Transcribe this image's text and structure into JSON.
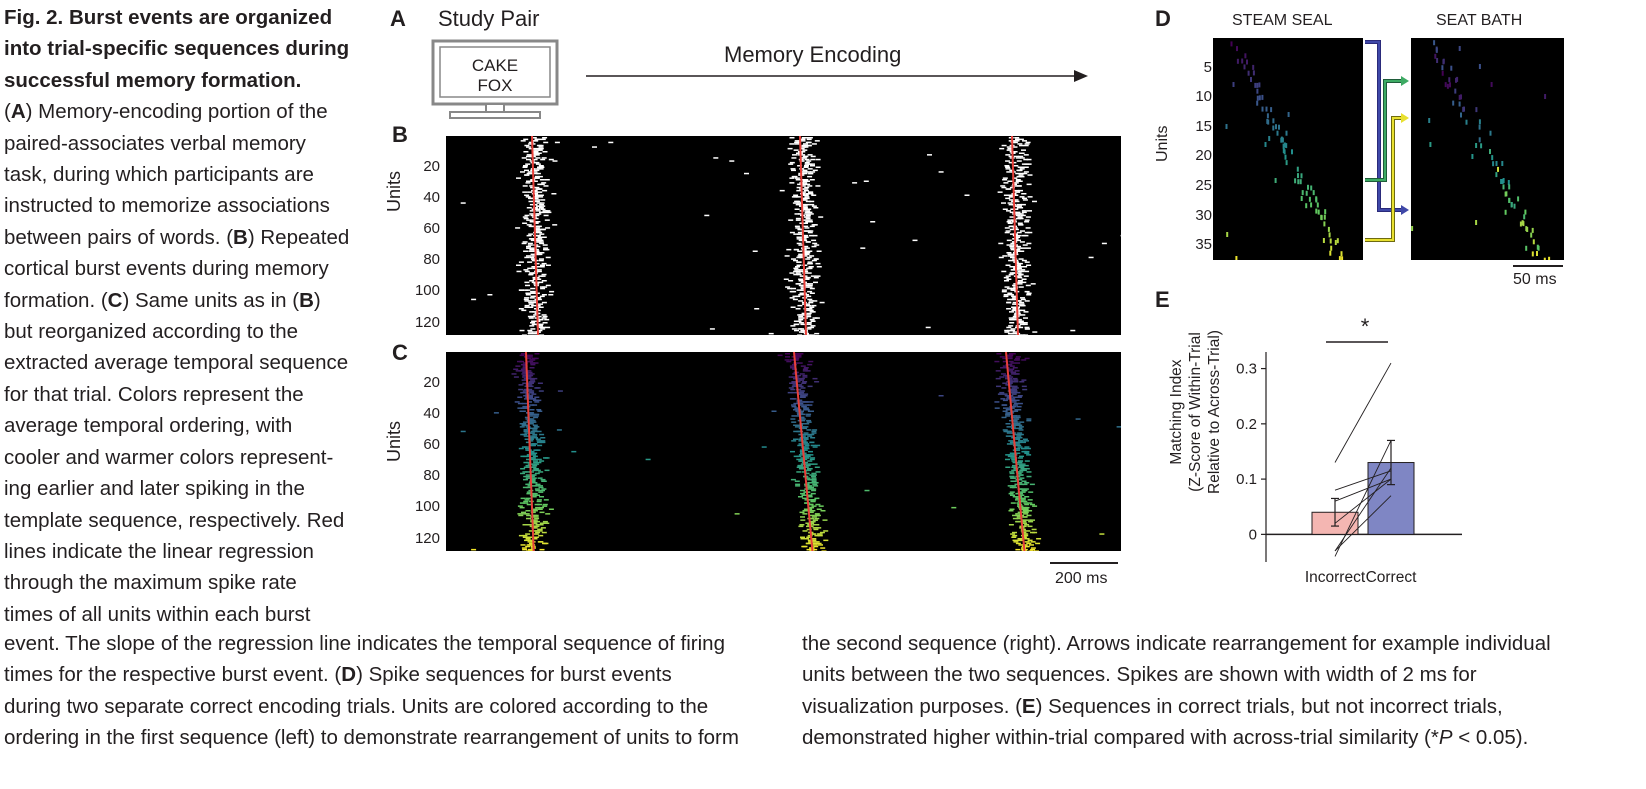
{
  "caption": {
    "fig_label": "Fig. 2.",
    "title": "Burst events are organized into trial-specific sequences during successful memory formation.",
    "lines_left": [
      "(A) Memory-encoding portion of the",
      "paired-associates verbal memory",
      "task, during which participants are",
      "instructed to memorize associations",
      "between pairs of words. (B) Repeated",
      "cortical burst events during memory",
      "formation. (C) Same units as in (B)",
      "but reorganized according to the",
      "extracted average temporal sequence",
      "for that trial. Colors represent the",
      "average temporal ordering, with",
      "cooler and warmer colors represent-",
      "ing earlier and later spiking in the",
      "template sequence, respectively. Red",
      "lines indicate the linear regression",
      "through the maximum spike rate",
      "times of all units within each burst"
    ],
    "bottom_left": [
      "event. The slope of the regression line indicates the temporal sequence of firing",
      "times for the respective burst event. (D) Spike sequences for burst events",
      "during two separate correct encoding trials. Units are colored according to the",
      "ordering in the first sequence (left) to demonstrate rearrangement of units to form"
    ],
    "bottom_right": [
      "the second sequence (right). Arrows indicate rearrangement for example individual",
      "units between the two sequences. Spikes are shown with width of 2 ms for",
      "visualization purposes. (E) Sequences in correct trials, but not incorrect trials,",
      "demonstrated higher within-trial compared with across-trial similarity (*P < 0.05)."
    ]
  },
  "panel_a": {
    "letter": "A",
    "study_pair": "Study Pair",
    "word1": "CAKE",
    "word2": "FOX",
    "arrow_label": "Memory Encoding"
  },
  "panel_b": {
    "letter": "B",
    "ylabel": "Units",
    "yticks": [
      "20",
      "40",
      "60",
      "80",
      "100",
      "120"
    ]
  },
  "panel_c": {
    "letter": "C",
    "ylabel": "Units",
    "yticks": [
      "20",
      "40",
      "60",
      "80",
      "100",
      "120"
    ],
    "scalebar": "200 ms"
  },
  "panel_d": {
    "letter": "D",
    "left_title": "STEAM SEAL",
    "right_title": "SEAT BATH",
    "ylabel": "Units",
    "yticks": [
      "5",
      "10",
      "15",
      "20",
      "25",
      "30",
      "35"
    ],
    "scalebar": "50 ms"
  },
  "panel_e": {
    "letter": "E",
    "ylabel_line1": "Matching Index",
    "ylabel_line2": "(Z-Score of Within-Trial",
    "ylabel_line3": "Relative to Across-Trial)",
    "significance": "*"
  },
  "chart_data": {
    "type": "bar",
    "categories": [
      "Incorrect",
      "Correct"
    ],
    "values": [
      0.04,
      0.13
    ],
    "errors": [
      0.025,
      0.04
    ],
    "yticks": [
      0,
      0.1,
      0.2,
      0.3
    ],
    "ylim": [
      -0.05,
      0.33
    ],
    "colors": [
      "#f4b6b2",
      "#7f86c4"
    ],
    "paired_lines": [
      [
        0.13,
        0.31
      ],
      [
        -0.04,
        0.17
      ],
      [
        -0.03,
        0.12
      ],
      [
        0.02,
        0.1
      ],
      [
        0.08,
        0.115
      ],
      [
        0.06,
        0.1
      ],
      [
        -0.03,
        0.07
      ]
    ]
  }
}
